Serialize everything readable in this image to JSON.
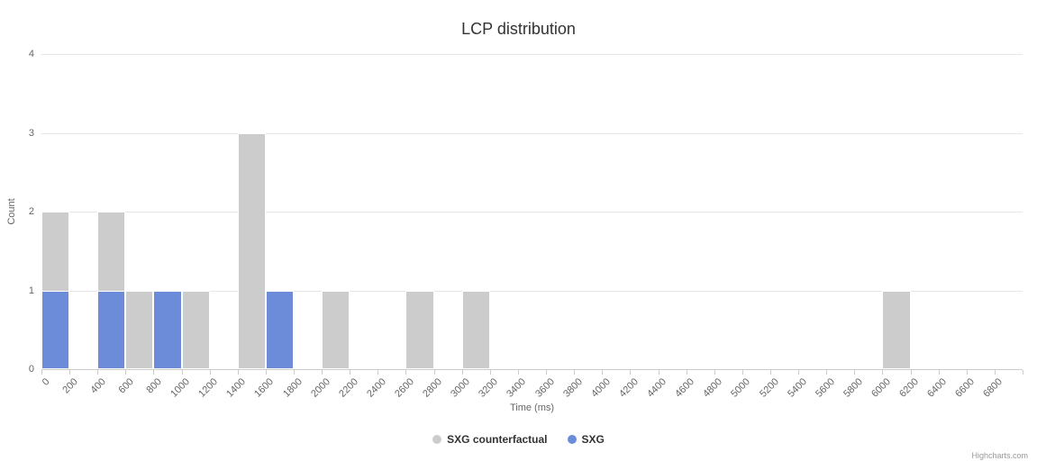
{
  "chart_data": {
    "type": "bar",
    "title": "LCP distribution",
    "xlabel": "Time (ms)",
    "ylabel": "Count",
    "ylim": [
      0,
      4
    ],
    "yticks": [
      0,
      1,
      2,
      3,
      4
    ],
    "grid": true,
    "legend_position": "bottom-center",
    "categories": [
      "0",
      "200",
      "400",
      "600",
      "800",
      "1000",
      "1200",
      "1400",
      "1600",
      "1800",
      "2000",
      "2200",
      "2400",
      "2600",
      "2800",
      "3000",
      "3200",
      "3400",
      "3600",
      "3800",
      "4000",
      "4200",
      "4400",
      "4600",
      "4800",
      "5000",
      "5200",
      "5400",
      "5600",
      "5800",
      "6000",
      "6200",
      "6400",
      "6600",
      "6800"
    ],
    "series": [
      {
        "name": "SXG counterfactual",
        "color": "#cccccc",
        "values": [
          2,
          0,
          2,
          1,
          0,
          1,
          0,
          3,
          0,
          0,
          1,
          0,
          0,
          1,
          0,
          1,
          0,
          0,
          0,
          0,
          0,
          0,
          0,
          0,
          0,
          0,
          0,
          0,
          0,
          0,
          1,
          0,
          0,
          0,
          0
        ]
      },
      {
        "name": "SXG",
        "color": "#6c8cd9",
        "values": [
          1,
          0,
          1,
          0,
          1,
          0,
          0,
          0,
          1,
          0,
          0,
          0,
          0,
          0,
          0,
          0,
          0,
          0,
          0,
          0,
          0,
          0,
          0,
          0,
          0,
          0,
          0,
          0,
          0,
          0,
          0,
          0,
          0,
          0,
          0
        ]
      }
    ]
  },
  "legend": {
    "items": [
      {
        "label": "SXG counterfactual",
        "color": "#cccccc"
      },
      {
        "label": "SXG",
        "color": "#6c8cd9"
      }
    ]
  },
  "credits": "Highcharts.com"
}
